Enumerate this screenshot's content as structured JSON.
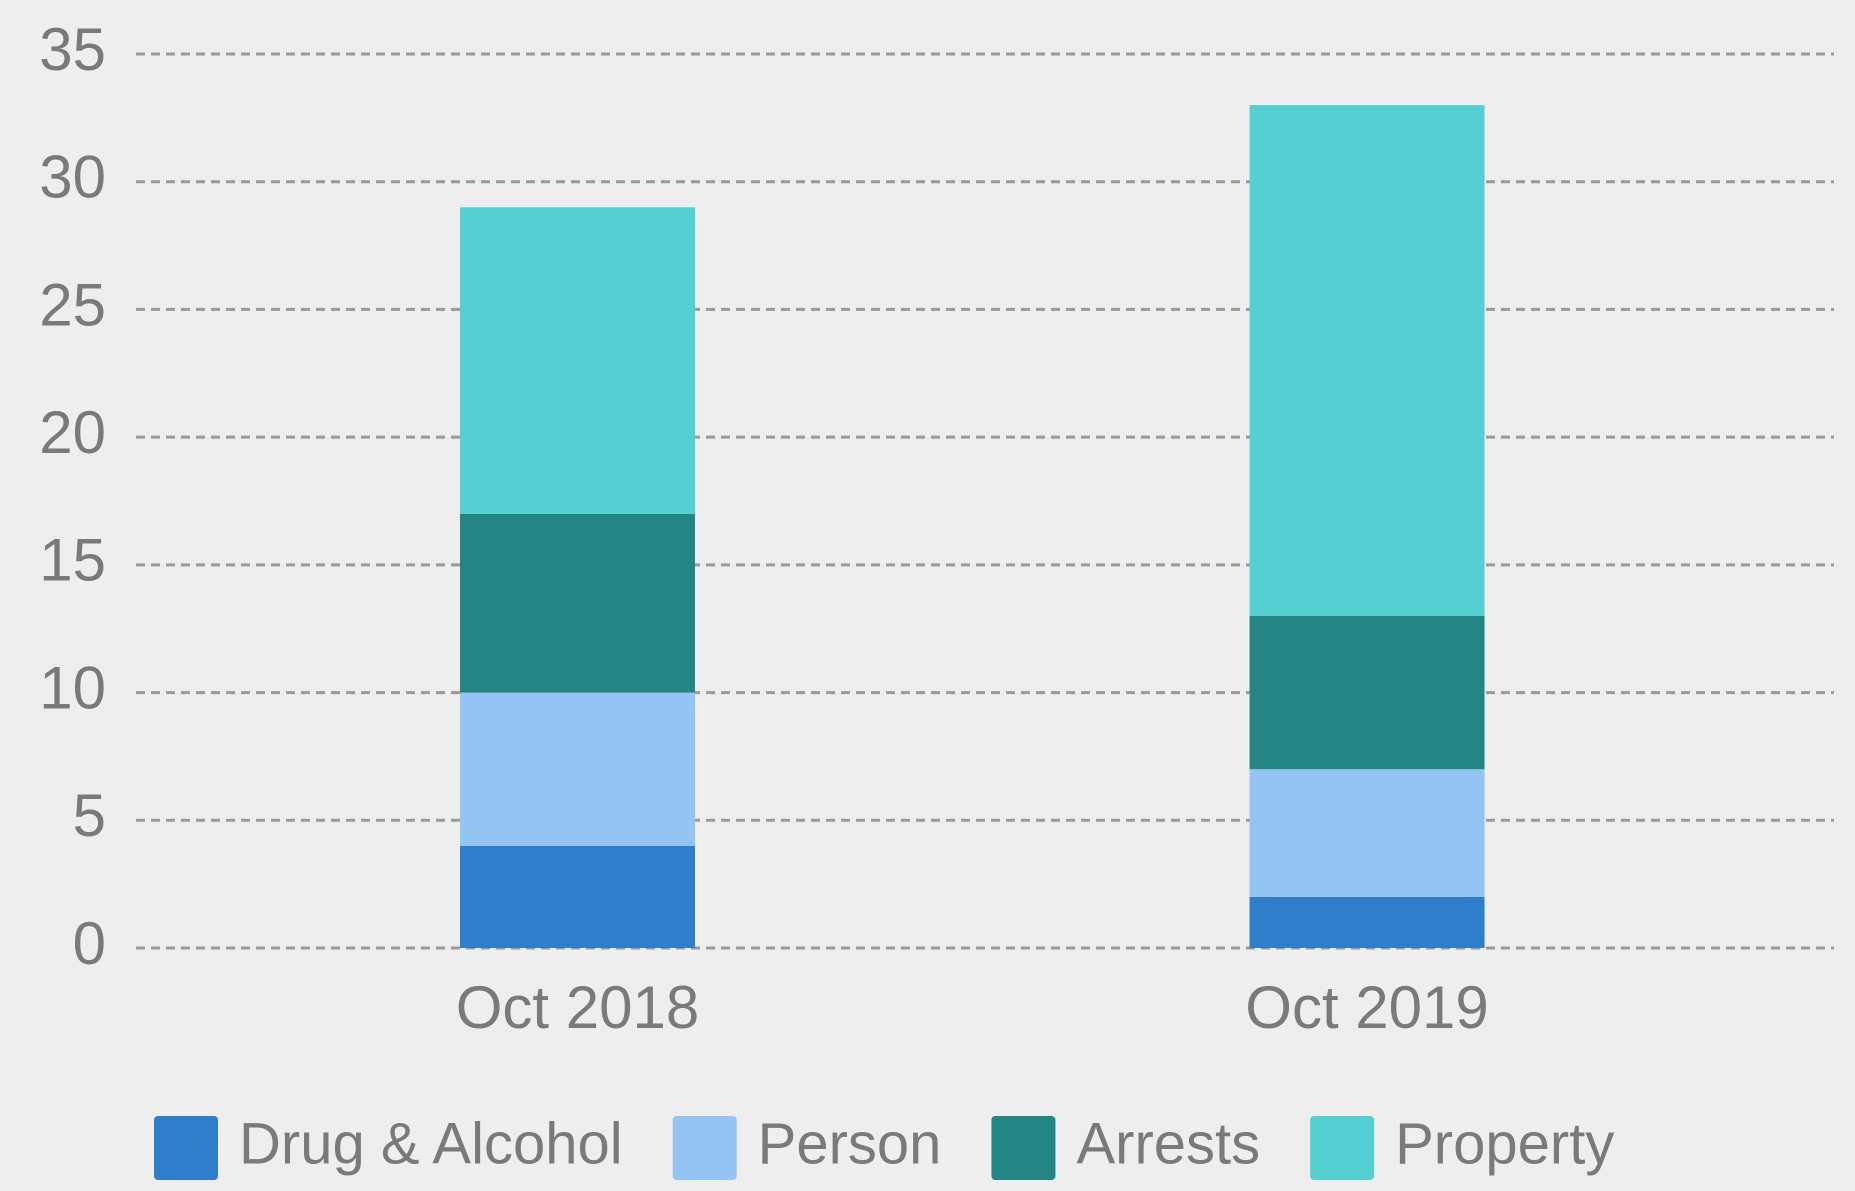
{
  "chart_data": {
    "type": "stacked_bar",
    "categories": [
      "Oct 2018",
      "Oct 2019"
    ],
    "series": [
      {
        "name": "Drug & Alcohol",
        "color": "#2e7ecb",
        "values": [
          4,
          2
        ]
      },
      {
        "name": "Person",
        "color": "#93c4f4",
        "values": [
          6,
          5
        ]
      },
      {
        "name": "Arrests",
        "color": "#238584",
        "values": [
          7,
          6
        ]
      },
      {
        "name": "Property",
        "color": "#55d0d2",
        "values": [
          12,
          20
        ]
      }
    ],
    "ylim": [
      0,
      35
    ],
    "yticks": [
      0,
      5,
      10,
      15,
      20,
      25,
      30,
      35
    ],
    "grid": true,
    "legend": "bottom"
  }
}
